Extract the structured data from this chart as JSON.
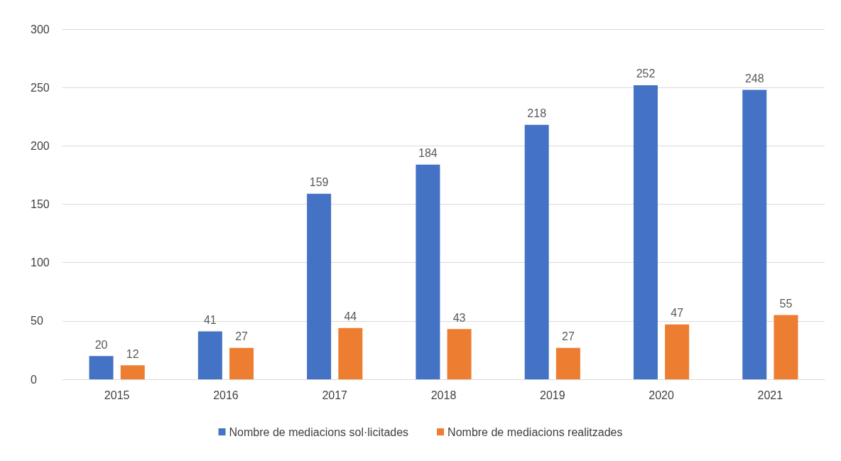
{
  "chart_data": {
    "type": "bar",
    "categories": [
      "2015",
      "2016",
      "2017",
      "2018",
      "2019",
      "2020",
      "2021"
    ],
    "series": [
      {
        "name": "Nombre de mediacions sol·licitades",
        "color": "#4472c4",
        "values": [
          20,
          41,
          159,
          184,
          218,
          252,
          248
        ]
      },
      {
        "name": "Nombre de mediacions realitzades",
        "color": "#ed7d31",
        "values": [
          12,
          27,
          44,
          43,
          27,
          47,
          55
        ]
      }
    ],
    "ylim": [
      0,
      300
    ],
    "yticks": [
      0,
      50,
      100,
      150,
      200,
      250,
      300
    ],
    "grid": "y",
    "legend": "bottom",
    "data_labels": true
  }
}
